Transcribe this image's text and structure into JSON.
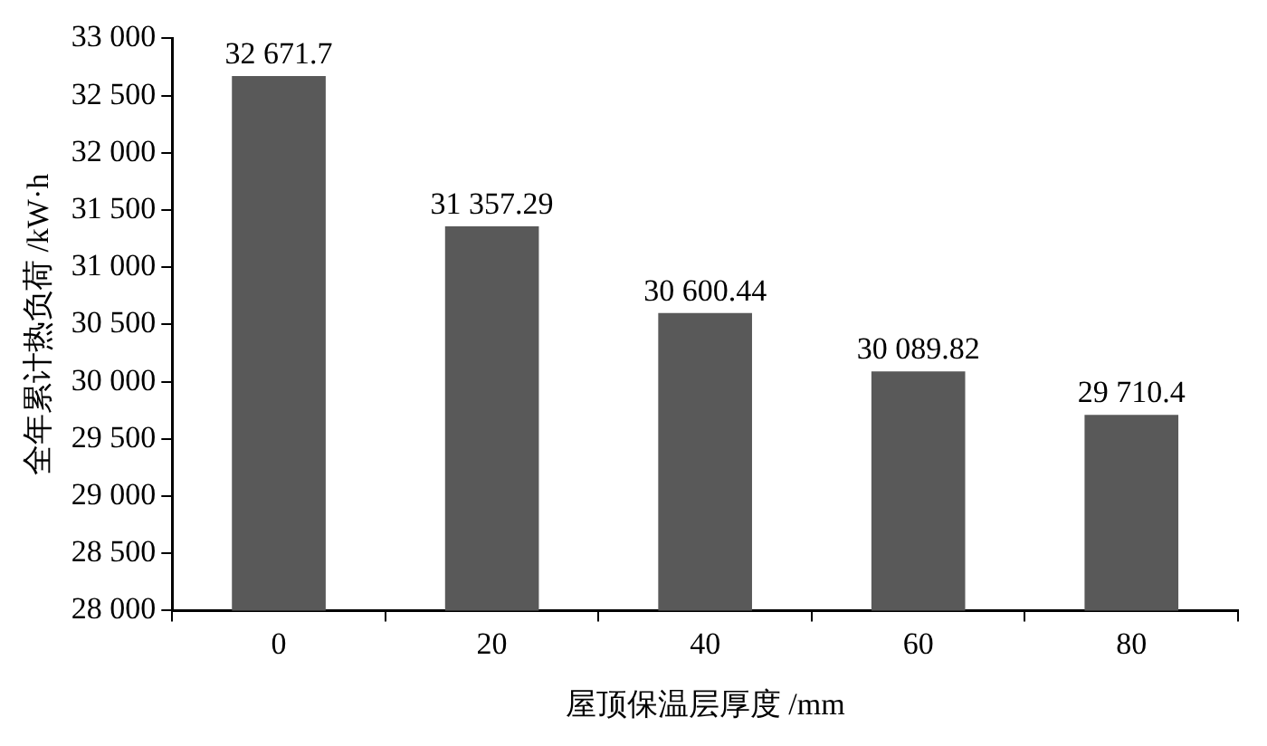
{
  "chart_data": {
    "type": "bar",
    "xlabel": "屋顶保温层厚度 /mm",
    "ylabel": "全年累计热负荷 /kW·h",
    "categories": [
      "0",
      "20",
      "40",
      "60",
      "80"
    ],
    "values": [
      32671.7,
      31357.29,
      30600.44,
      30089.82,
      29710.4
    ],
    "value_labels": [
      "32 671.7",
      "31 357.29",
      "30 600.44",
      "30 089.82",
      "29 710.4"
    ],
    "color": "#595959",
    "ylim": [
      28000,
      33000
    ],
    "yticks": [
      {
        "value": 28000,
        "label": "28 000"
      },
      {
        "value": 28500,
        "label": "28 500"
      },
      {
        "value": 29000,
        "label": "29 000"
      },
      {
        "value": 29500,
        "label": "29 500"
      },
      {
        "value": 30000,
        "label": "30 000"
      },
      {
        "value": 30500,
        "label": "30 500"
      },
      {
        "value": 31000,
        "label": "31 000"
      },
      {
        "value": 31500,
        "label": "31 500"
      },
      {
        "value": 32000,
        "label": "32 000"
      },
      {
        "value": 32500,
        "label": "32 500"
      },
      {
        "value": 33000,
        "label": "33 000"
      }
    ],
    "grid": false,
    "legend": false
  }
}
